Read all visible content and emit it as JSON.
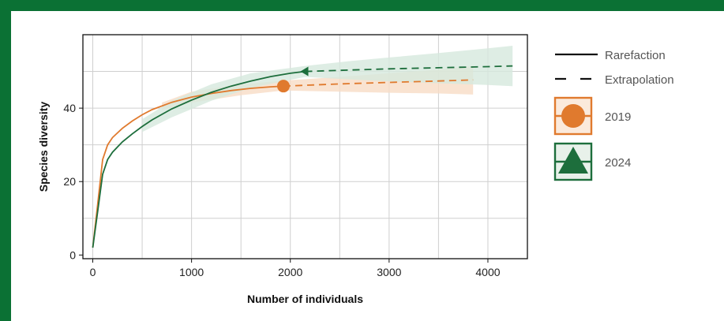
{
  "colors": {
    "frame": "#0b7134",
    "y2019": "#e07a2e",
    "y2019_band": "#f8dcc6",
    "y2024": "#1d6e3c",
    "y2024_band": "#d6e8dd",
    "grid": "#cfcfcf"
  },
  "chart_data": {
    "type": "line",
    "xlabel": "Number of individuals",
    "ylabel": "Species diversity",
    "xlim": [
      -100,
      4400
    ],
    "ylim": [
      -1,
      60
    ],
    "xticks": [
      0,
      1000,
      2000,
      3000,
      4000
    ],
    "yticks": [
      0,
      20,
      40
    ],
    "grid": true,
    "legend_placement": "right",
    "legend": {
      "styles": [
        {
          "label": "Rarefaction",
          "line": "solid"
        },
        {
          "label": "Extrapolation",
          "line": "dashed"
        }
      ],
      "groups": [
        {
          "label": "2019",
          "marker": "circle",
          "color": "#e07a2e"
        },
        {
          "label": "2024",
          "marker": "triangle",
          "color": "#1d6e3c"
        }
      ]
    },
    "series": [
      {
        "name": "2019",
        "color": "#e07a2e",
        "marker": "circle",
        "rarefaction": {
          "x": [
            0,
            50,
            100,
            150,
            200,
            300,
            400,
            500,
            600,
            800,
            1000,
            1200,
            1400,
            1600,
            1800,
            1930
          ],
          "y": [
            2,
            14,
            26,
            30,
            32,
            34.5,
            36.5,
            38.2,
            39.6,
            41.6,
            43,
            44,
            44.8,
            45.4,
            45.8,
            46
          ]
        },
        "reference": {
          "x": 1930,
          "y": 46
        },
        "extrapolation": {
          "x": [
            1930,
            2500,
            3000,
            3500,
            3850
          ],
          "y": [
            46,
            46.6,
            47,
            47.4,
            47.7
          ]
        },
        "band": {
          "x": [
            700,
            1000,
            1500,
            1930,
            2500,
            3000,
            3500,
            3850
          ],
          "lower": [
            39.5,
            41.5,
            43.5,
            44.8,
            44.5,
            44.2,
            44,
            43.7
          ],
          "upper": [
            41.5,
            44.5,
            46.5,
            47.5,
            48.5,
            49.5,
            50.5,
            51.5
          ]
        }
      },
      {
        "name": "2024",
        "color": "#1d6e3c",
        "marker": "triangle",
        "rarefaction": {
          "x": [
            0,
            50,
            100,
            150,
            200,
            300,
            400,
            500,
            600,
            800,
            1000,
            1200,
            1400,
            1600,
            1800,
            2000,
            2150
          ],
          "y": [
            2,
            12,
            22,
            26,
            28,
            30.8,
            33,
            35,
            36.8,
            39.8,
            42.2,
            44.3,
            46,
            47.4,
            48.6,
            49.5,
            50
          ]
        },
        "reference": {
          "x": 2150,
          "y": 50
        },
        "extrapolation": {
          "x": [
            2150,
            2500,
            3000,
            3500,
            4000,
            4250
          ],
          "y": [
            50,
            50.3,
            50.7,
            51,
            51.3,
            51.5
          ]
        },
        "band": {
          "x": [
            500,
            800,
            1200,
            1600,
            2150,
            2600,
            3000,
            3500,
            4000,
            4250
          ],
          "lower": [
            33.5,
            37.5,
            42,
            45.5,
            48.5,
            47.8,
            47.3,
            46.8,
            46.3,
            46
          ],
          "upper": [
            37,
            42,
            46.5,
            49.5,
            51.5,
            52.8,
            53.8,
            55,
            56.3,
            57
          ]
        }
      }
    ]
  }
}
